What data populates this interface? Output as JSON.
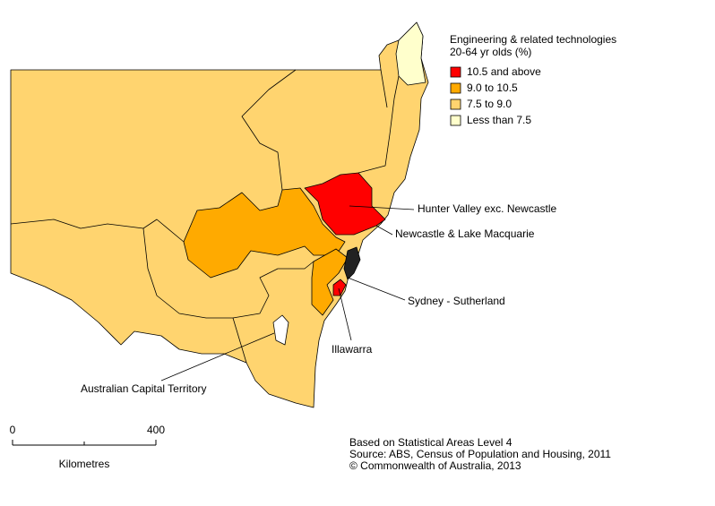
{
  "legend": {
    "title": "Engineering & related technologies",
    "subtitle": "20-64 yr olds (%)",
    "items": [
      {
        "label": "10.5 and above",
        "color": "#ff0000"
      },
      {
        "label": "9.0 to 10.5",
        "color": "#ffaa00"
      },
      {
        "label": "7.5 to  9.0",
        "color": "#ffd46f"
      },
      {
        "label": "Less than 7.5",
        "color": "#ffffcc"
      }
    ]
  },
  "labels": [
    "Hunter Valley exc. Newcastle",
    "Newcastle & Lake Macquarie",
    "Sydney - Sutherland",
    "Illawarra",
    "Australian Capital Territory"
  ],
  "scale": {
    "ticks": [
      "0",
      "400"
    ],
    "unit": "Kilometres"
  },
  "notes": [
    "Based on Statistical Areas Level 4",
    "Source: ABS, Census of Population and Housing, 2011",
    "© Commonwealth of Australia, 2013"
  ]
}
